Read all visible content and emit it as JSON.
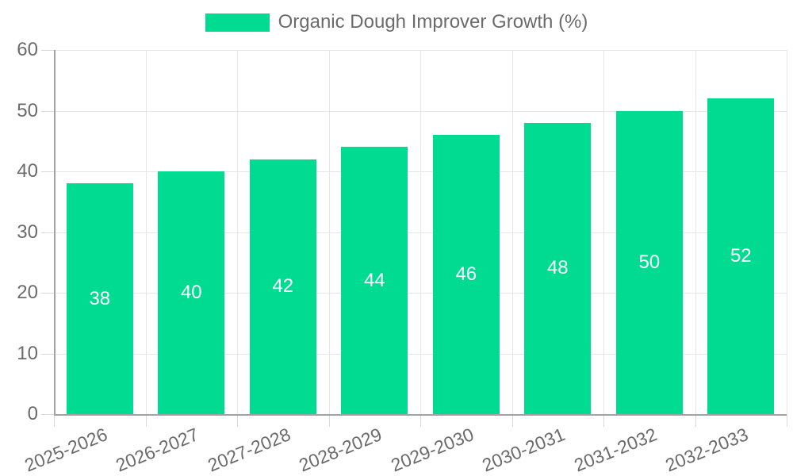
{
  "legend": {
    "label": "Organic Dough Improver Growth (%)"
  },
  "colors": {
    "bar": "#00db92",
    "grid": "#e6e6e6",
    "tick": "#d9d9d9",
    "axis": "#a3a3a3",
    "text": "#6b6b6b",
    "data_label": "#ffffff",
    "background": "#ffffff"
  },
  "chart_data": {
    "type": "bar",
    "title": "Organic Dough Improver Growth (%)",
    "categories": [
      "2025-2026",
      "2026-2027",
      "2027-2028",
      "2028-2029",
      "2029-2030",
      "2030-2031",
      "2031-2032",
      "2032-2033"
    ],
    "values": [
      38,
      40,
      42,
      44,
      46,
      48,
      50,
      52
    ],
    "xlabel": "",
    "ylabel": "",
    "ylim": [
      0,
      60
    ],
    "ytick_step": 10,
    "yticks": [
      0,
      10,
      20,
      30,
      40,
      50,
      60
    ],
    "grid": true,
    "legend_position": "top",
    "data_labels_position": "inside-center",
    "x_label_rotation_deg": -22
  }
}
